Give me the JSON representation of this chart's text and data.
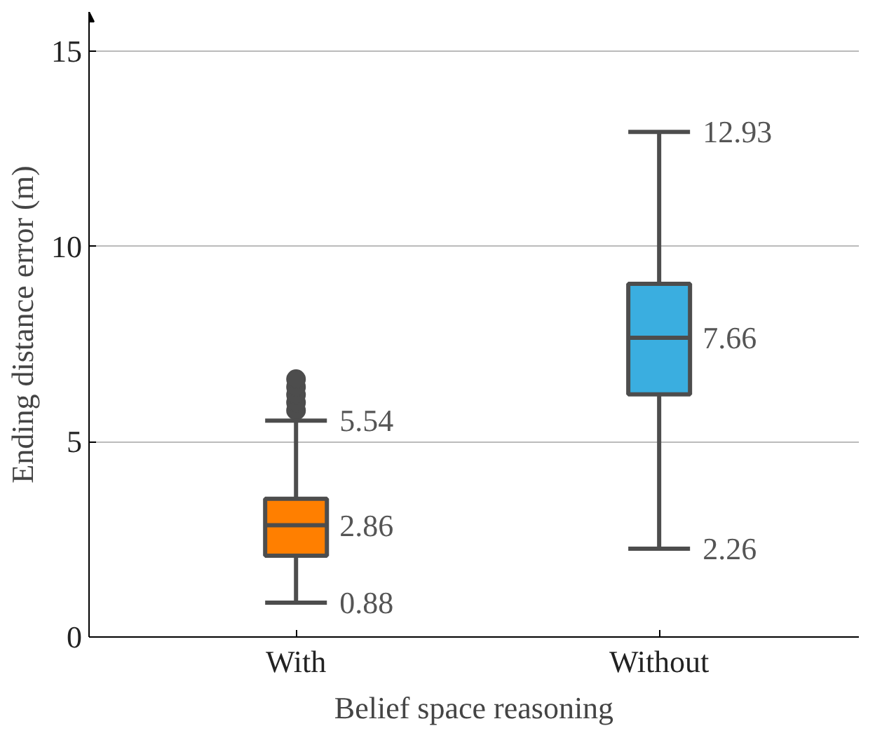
{
  "chart_data": {
    "type": "box",
    "xlabel": "Belief space reasoning",
    "ylabel": "Ending distance error (m)",
    "categories": [
      "With",
      "Without"
    ],
    "colors": [
      "#ff7f00",
      "#3aaee0"
    ],
    "boxes": [
      {
        "low": 0.88,
        "q1": 2.08,
        "median": 2.86,
        "q3": 3.54,
        "high": 5.54,
        "outliers": [
          5.8,
          6.0,
          6.2,
          6.4,
          6.6
        ]
      },
      {
        "low": 2.26,
        "q1": 6.21,
        "median": 7.66,
        "q3": 9.04,
        "high": 12.93
      }
    ],
    "annotations": [
      {
        "text": "5.54",
        "x": "With",
        "y": 5.54
      },
      {
        "text": "2.86",
        "x": "With",
        "y": 2.86
      },
      {
        "text": "0.88",
        "x": "With",
        "y": 0.88
      },
      {
        "text": "12.93",
        "x": "Without",
        "y": 12.93
      },
      {
        "text": "7.66",
        "x": "Without",
        "y": 7.66
      },
      {
        "text": "2.26",
        "x": "Without",
        "y": 2.26
      }
    ],
    "ylim": [
      0,
      16
    ],
    "yticks": [
      0,
      5,
      10,
      15
    ],
    "grid": "y"
  }
}
